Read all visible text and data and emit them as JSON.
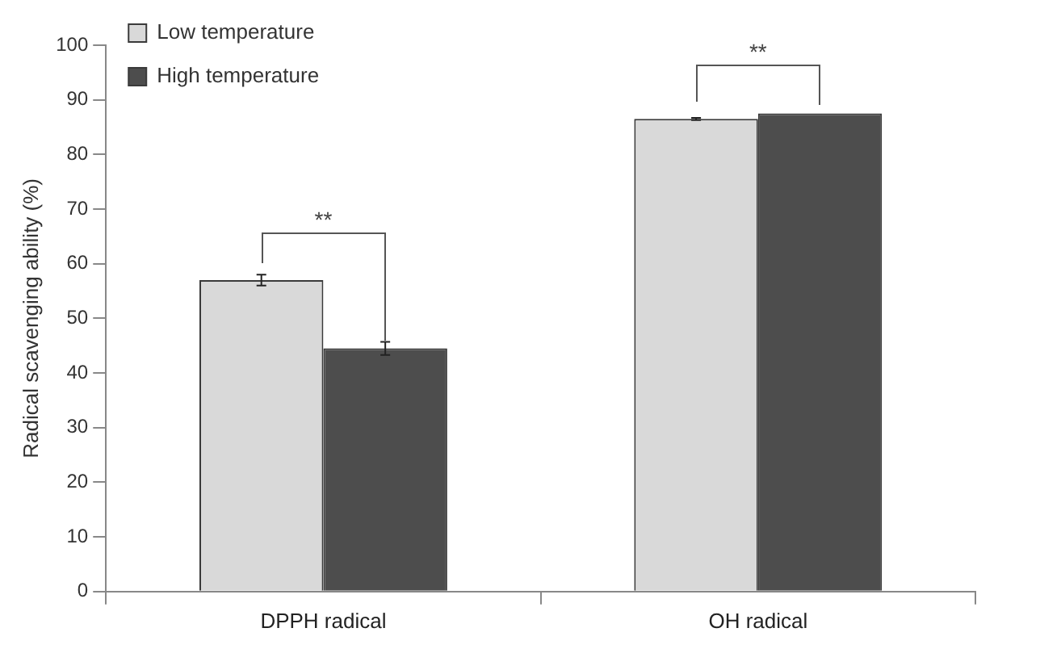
{
  "chart_data": {
    "type": "bar",
    "ylabel": "Radical scavenging ability (%)",
    "categories": [
      "DPPH radical",
      "OH radical"
    ],
    "series": [
      {
        "name": "Low temperature",
        "color": "#d9d9d9",
        "values": [
          57,
          86.5
        ],
        "errors": [
          1,
          0.2
        ]
      },
      {
        "name": "High temperature",
        "color": "#4d4d4d",
        "values": [
          44.5,
          87.5
        ],
        "errors": [
          1.2,
          null
        ]
      }
    ],
    "ylim": [
      0,
      100
    ],
    "yticks": [
      0,
      10,
      20,
      30,
      40,
      50,
      60,
      70,
      80,
      90,
      100
    ],
    "grid": false,
    "legend": "top left",
    "annotations": [
      "**",
      "**"
    ]
  }
}
